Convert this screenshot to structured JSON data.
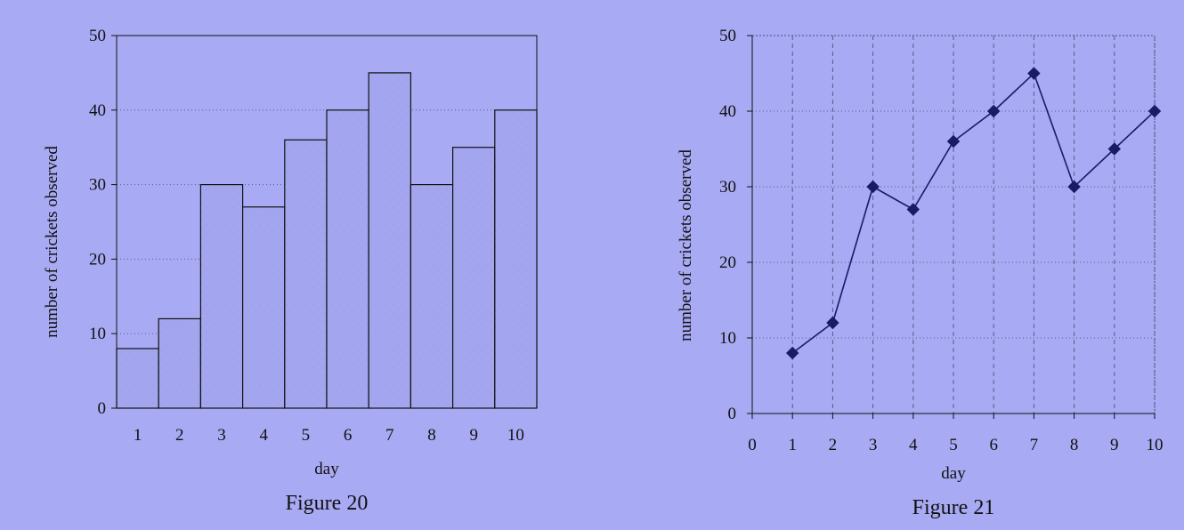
{
  "colors": {
    "background": "#a8aaf3",
    "bar_fill": "#a3a5ee",
    "ink": "#111111",
    "line_marker": "#1a1a66",
    "gridline": "#5a5a8a"
  },
  "chart_data": [
    {
      "type": "bar",
      "caption": "Figure 20",
      "xlabel": "day",
      "ylabel": "number of crickets observed",
      "categories": [
        "1",
        "2",
        "3",
        "4",
        "5",
        "6",
        "7",
        "8",
        "9",
        "10"
      ],
      "values": [
        8,
        12,
        30,
        27,
        36,
        40,
        45,
        30,
        35,
        40
      ],
      "ylim": [
        0,
        50
      ],
      "yticks": [
        0,
        10,
        20,
        30,
        40,
        50
      ],
      "grid": "horizontal dotted",
      "legend": "none"
    },
    {
      "type": "line",
      "caption": "Figure 21",
      "xlabel": "day",
      "ylabel": "number of crickets observed",
      "x": [
        1,
        2,
        3,
        4,
        5,
        6,
        7,
        8,
        9,
        10
      ],
      "values": [
        8,
        12,
        30,
        27,
        36,
        40,
        45,
        30,
        35,
        40
      ],
      "xlim": [
        0,
        10
      ],
      "ylim": [
        0,
        50
      ],
      "xticks": [
        0,
        1,
        2,
        3,
        4,
        5,
        6,
        7,
        8,
        9,
        10
      ],
      "yticks": [
        0,
        10,
        20,
        30,
        40,
        50
      ],
      "marker": "diamond",
      "grid": "dashed both axes",
      "legend": "none"
    }
  ]
}
